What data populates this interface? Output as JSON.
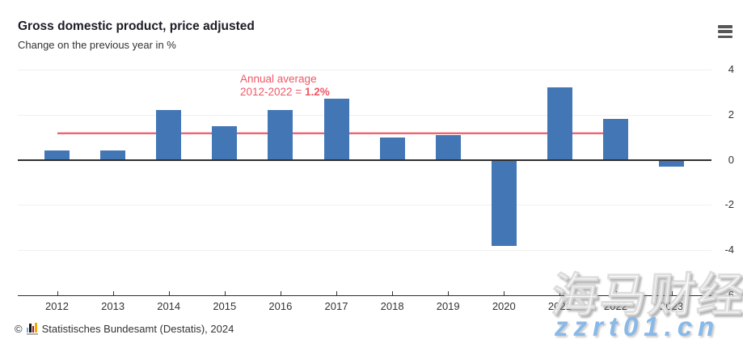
{
  "header": {
    "title": "Gross domestic product, price adjusted",
    "subtitle": "Change on the previous year in %"
  },
  "chart_data": {
    "type": "bar",
    "title": "Gross domestic product, price adjusted",
    "subtitle": "Change on the previous year in %",
    "unit": "%",
    "categories": [
      "2012",
      "2013",
      "2014",
      "2015",
      "2016",
      "2017",
      "2018",
      "2019",
      "2020",
      "2021",
      "2022",
      "2023"
    ],
    "values": [
      0.4,
      0.4,
      2.2,
      1.5,
      2.2,
      2.7,
      1.0,
      1.1,
      -3.8,
      3.2,
      1.8,
      -0.3
    ],
    "ylim": [
      -6,
      4
    ],
    "yticks": [
      4,
      2,
      0,
      -2,
      -4,
      -6
    ],
    "grid": true,
    "legend": "none",
    "bar_color": "#4376b5",
    "average_line": {
      "value": 1.2,
      "from_category": "2012",
      "to_category": "2022",
      "color": "#ee5b68",
      "label_line1": "Annual average",
      "label_line2_prefix": "2012-2022 = ",
      "label_value": "1.2%"
    }
  },
  "footer": {
    "copyright": "©",
    "source_text": "Statistisches Bundesamt (Destatis), 2024"
  },
  "watermark": {
    "text_cn": "海马财经",
    "url": "zzrt01.cn"
  }
}
